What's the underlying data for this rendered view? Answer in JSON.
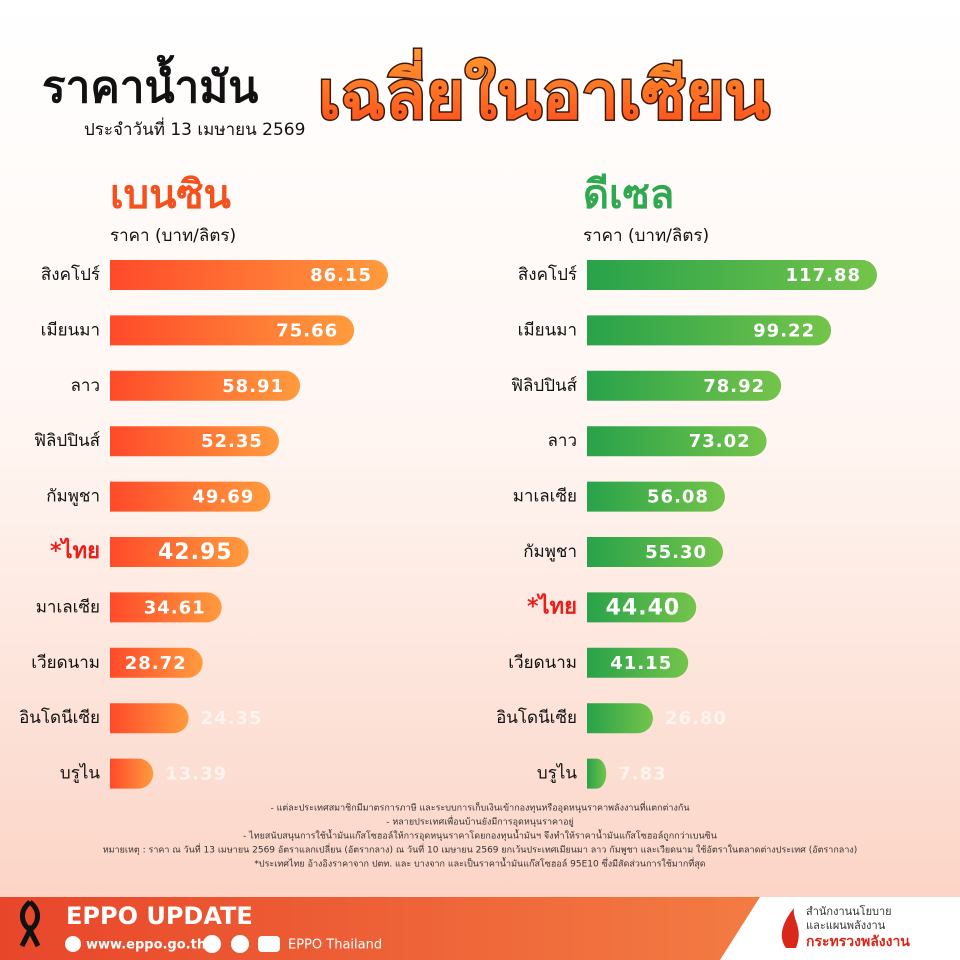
{
  "header": {
    "title_a": "ราคาน้ำมัน",
    "title_b": "เฉลี่ยในอาเซียน",
    "date": "ประจำวันที่ 13 เมษายน 2569"
  },
  "chart_data": [
    {
      "type": "hbar",
      "title": "เบนซิน",
      "axis_label": "ราคา (บาท/ลิตร)",
      "categories": [
        "สิงคโปร์",
        "เมียนมา",
        "ลาว",
        "ฟิลิปปินส์",
        "กัมพูชา",
        "*ไทย",
        "มาเลเซีย",
        "เวียดนาม",
        "อินโดนีเซีย",
        "บรูไน"
      ],
      "values": [
        86.15,
        75.66,
        58.91,
        52.35,
        49.69,
        42.95,
        34.61,
        28.72,
        24.35,
        13.39
      ],
      "value_labels": [
        "86.15",
        "75.66",
        "58.91",
        "52.35",
        "49.69",
        "42.95",
        "34.61",
        "28.72",
        "24.35",
        "13.39"
      ],
      "color": [
        "#ff4a2a",
        "#ff9b3d"
      ],
      "title_color": "#f4511e",
      "highlight": 5,
      "highlight_color": "#e8201a"
    },
    {
      "type": "hbar",
      "title": "ดีเซล",
      "axis_label": "ราคา (บาท/ลิตร)",
      "categories": [
        "สิงคโปร์",
        "เมียนมา",
        "ฟิลิปปินส์",
        "ลาว",
        "มาเลเซีย",
        "กัมพูชา",
        "*ไทย",
        "เวียดนาม",
        "อินโดนีเซีย",
        "บรูไน"
      ],
      "values": [
        117.88,
        99.22,
        78.92,
        73.02,
        56.08,
        55.3,
        44.4,
        41.15,
        26.8,
        7.83
      ],
      "value_labels": [
        "117.88",
        "99.22",
        "78.92",
        "73.02",
        "56.08",
        "55.30",
        "44.40",
        "41.15",
        "26.80",
        "7.83"
      ],
      "color": [
        "#28a24a",
        "#74c44a"
      ],
      "title_color": "#2fa84f",
      "highlight": 6,
      "highlight_color": "#e8201a"
    }
  ],
  "notes": [
    "- แต่ละประเทศสมาชิกมีมาตรการภาษี และระบบการเก็บเงินเข้ากองทุนหรืออุดหนุนราคาพลังงานที่แตกต่างกัน",
    "- หลายประเทศเพื่อนบ้านยังมีการอุดหนุนราคาอยู่",
    "- ไทยสนับสนุนการใช้น้ำมันแก๊สโซฮอล์ให้การอุดหนุนราคาโดยกองทุนน้ำมันฯ จึงทำให้ราคาน้ำมันแก๊สโซฮอล์ถูกกว่าเบนซิน",
    "หมายเหตุ : ราคา ณ วันที่ 13 เมษายน 2569 อัตราแลกเปลี่ยน (อัตรากลาง) ณ วันที่ 10 เมษายน 2569 ยกเว้นประเทศเมียนมา ลาว กัมพูชา และเวียดนาม ใช้อัตราในตลาดต่างประเทศ (อัตรากลาง)",
    "*ประเทศไทย อ้างอิงราคาจาก ปตท. และ บางจาก และเป็นราคาน้ำมันแก๊สโซฮอล์ 95E10 ซึ่งมีสัดส่วนการใช้มากที่สุด"
  ],
  "footer": {
    "brand": "EPPO UPDATE",
    "website": "www.eppo.go.th",
    "social": "EPPO Thailand",
    "org_1": "สำนักงานนโยบาย",
    "org_2": "และแผนพลังงาน",
    "org_3": "กระทรวงพลังงาน"
  }
}
